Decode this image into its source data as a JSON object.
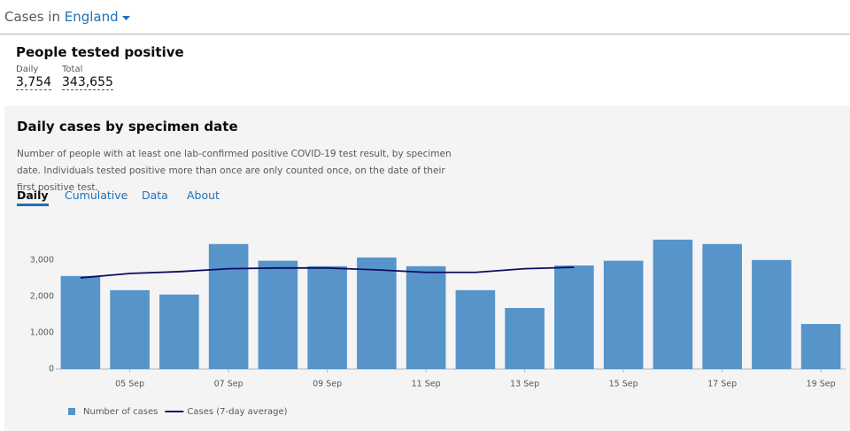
{
  "header": {
    "prefix": "Cases in",
    "area": "England"
  },
  "summary": {
    "title": "People tested positive",
    "daily_label": "Daily",
    "daily_value": "3,754",
    "total_label": "Total",
    "total_value": "343,655"
  },
  "panel": {
    "title": "Daily cases by specimen date",
    "description": "Number of people with at least one lab-confirmed positive COVID-19 test result, by specimen date. Individuals tested positive more than once are only counted once, on the date of their first positive test.",
    "tabs": [
      "Daily",
      "Cumulative",
      "Data",
      "About"
    ]
  },
  "chart_data": {
    "type": "bar",
    "categories": [
      null,
      "05 Sep",
      null,
      "07 Sep",
      null,
      "09 Sep",
      null,
      "11 Sep",
      null,
      "13 Sep",
      null,
      "15 Sep",
      null,
      "17 Sep",
      null,
      "19 Sep"
    ],
    "series": [
      {
        "name": "Number of cases",
        "type": "bar",
        "color": "#5694ca",
        "values": [
          2560,
          2170,
          2050,
          3440,
          2980,
          2830,
          3070,
          2830,
          2170,
          1680,
          2850,
          2980,
          3560,
          3440,
          3000,
          1240
        ]
      },
      {
        "name": "Cases (7-day average)",
        "type": "line",
        "color": "#0b0c66",
        "values": [
          2510,
          2630,
          2680,
          2760,
          2780,
          2780,
          2730,
          2660,
          2660,
          2760,
          2800,
          null,
          null,
          null,
          null,
          null
        ]
      }
    ],
    "ylim": [
      0,
      3750
    ],
    "yticks": [
      0,
      {
        "value": 1000,
        "label": "1,000"
      },
      {
        "value": 2000,
        "label": "2,000"
      },
      {
        "value": 3000,
        "label": "3,000"
      }
    ],
    "grid": false
  }
}
